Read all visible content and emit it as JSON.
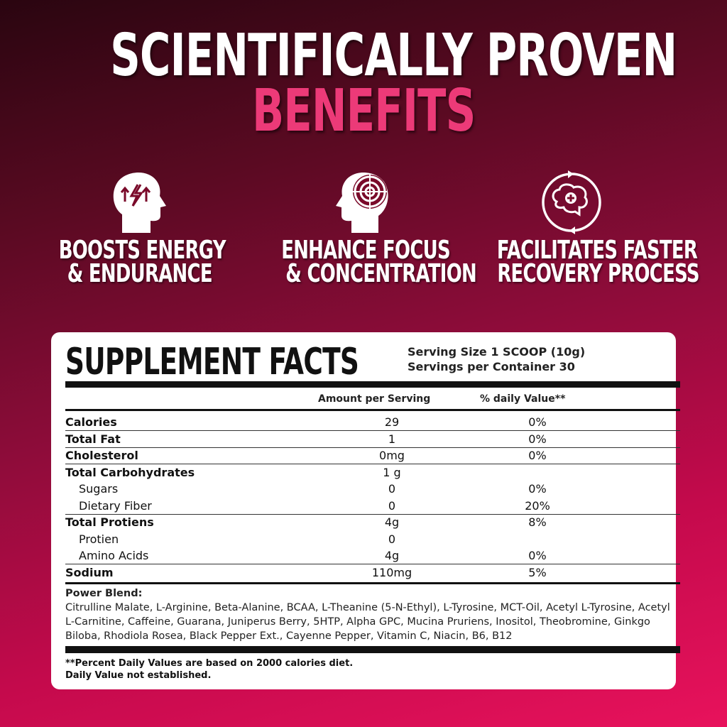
{
  "headline": {
    "line1": "SCIENTIFICALLY PROVEN",
    "line2": "BENEFITS"
  },
  "colors": {
    "accent": "#ec3a78",
    "background_dark": "#2a0510",
    "background_bright": "#e8125c"
  },
  "benefits": [
    {
      "icon": "head-energy-icon",
      "line1": "BOOSTS ENERGY",
      "line2": "& ENDURANCE"
    },
    {
      "icon": "head-target-icon",
      "line1": "ENHANCE FOCUS",
      "line2": "& CONCENTRATION"
    },
    {
      "icon": "brain-recovery-icon",
      "line1": "FACILITATES FASTER",
      "line2": "RECOVERY PROCESS"
    }
  ],
  "facts": {
    "title": "SUPPLEMENT FACTS",
    "serving_size": "Serving Size 1 SCOOP (10g)",
    "servings_per_container": "Servings per Container 30",
    "col_amount": "Amount  per Serving",
    "col_dv": "% daily Value**",
    "rows": [
      {
        "label": "Calories",
        "amount": "29",
        "dv": "0%"
      },
      {
        "label": "Total Fat",
        "amount": "1",
        "dv": "0%"
      },
      {
        "label": "Cholesterol",
        "amount": "0mg",
        "dv": "0%"
      },
      {
        "label": "Total Carbohydrates",
        "amount": "1 g",
        "dv": ""
      },
      {
        "label": "Sugars",
        "amount": "0",
        "dv": "0%"
      },
      {
        "label": "Dietary Fiber",
        "amount": "0",
        "dv": "20%"
      },
      {
        "label": "Total Protiens",
        "amount": "4g",
        "dv": "8%"
      },
      {
        "label": "Protien",
        "amount": "0",
        "dv": ""
      },
      {
        "label": "Amino Acids",
        "amount": "4g",
        "dv": "0%"
      },
      {
        "label": "Sodium",
        "amount": "110mg",
        "dv": "5%"
      }
    ],
    "blend_title": "Power Blend:",
    "blend_text": "Citrulline Malate, L-Arginine, Beta-Alanine, BCAA,  L-Theanine (5-N-Ethyl), L-Tyrosine, MCT-Oil, Acetyl L-Tyrosine, Acetyl L-Carnitine, Caffeine, Guarana, Juniperus Berry, 5HTP, Alpha GPC, Mucina Pruriens, Inositol, Theobromine, Ginkgo Biloba, Rhodiola Rosea, Black Pepper Ext., Cayenne Pepper, Vitamin C, Niacin, B6, B12",
    "footnote1": "**Percent Daily Values are based on 2000 calories diet.",
    "footnote2": "Daily Value not established."
  }
}
